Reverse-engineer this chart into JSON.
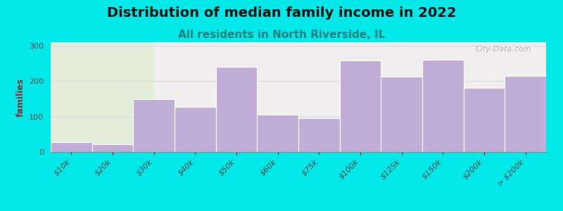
{
  "title": "Distribution of median family income in 2022",
  "subtitle": "All residents in North Riverside, IL",
  "ylabel": "families",
  "categories": [
    "$10k",
    "$20k",
    "$30k",
    "$40k",
    "$50k",
    "$60k",
    "$75k",
    "$100k",
    "$125k",
    "$150k",
    "$200k",
    "> $200k"
  ],
  "values": [
    28,
    22,
    150,
    128,
    240,
    105,
    95,
    258,
    213,
    260,
    180,
    215
  ],
  "bar_color": "#c0aed8",
  "background_outer": "#00e8e8",
  "plot_bg_right": "#f0eeee",
  "plot_bg_left": "#e4ecda",
  "yticks": [
    0,
    100,
    200,
    300
  ],
  "ylim": [
    0,
    310
  ],
  "watermark": "City-Data.com",
  "title_fontsize": 14,
  "subtitle_fontsize": 11,
  "ylabel_fontsize": 9,
  "tick_fontsize": 8
}
